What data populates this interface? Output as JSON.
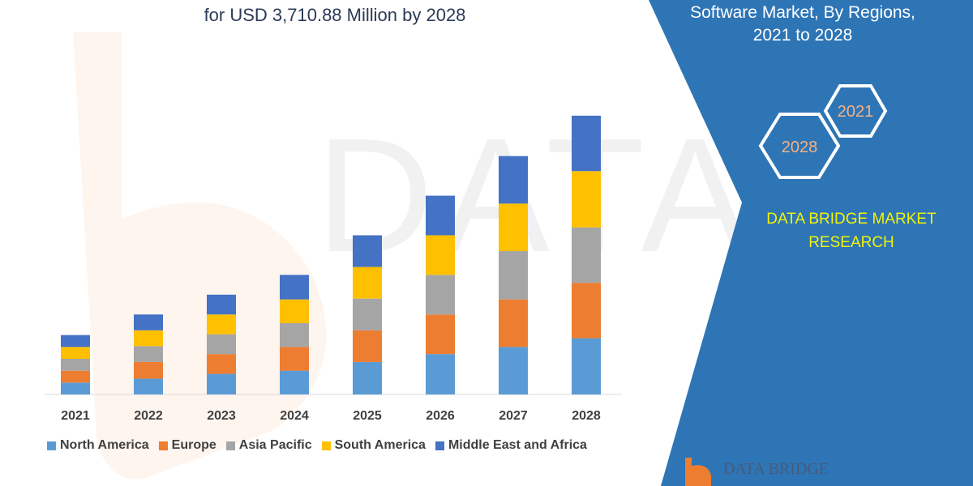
{
  "title_line2": "for USD 3,710.88 Million by 2028",
  "side_panel": {
    "line1": "Software Market, By Regions,",
    "line2": "2021 to 2028",
    "hex_a": "2021",
    "hex_b": "2028",
    "brand_line1": "DATA BRIDGE MARKET",
    "brand_line2": "RESEARCH",
    "logo_text": "DATA BRIDGE",
    "panel_color": "#2e75b6"
  },
  "chart_data": {
    "type": "bar",
    "stacked": true,
    "categories": [
      "2021",
      "2022",
      "2023",
      "2024",
      "2025",
      "2026",
      "2027",
      "2028"
    ],
    "series": [
      {
        "name": "North America",
        "color": "#5b9bd5",
        "values": [
          15,
          20,
          26,
          30,
          41,
          51,
          60,
          71
        ]
      },
      {
        "name": "Europe",
        "color": "#ed7d31",
        "values": [
          15,
          21,
          25,
          30,
          40,
          50,
          60,
          70
        ]
      },
      {
        "name": "Asia Pacific",
        "color": "#a5a5a5",
        "values": [
          15,
          20,
          25,
          30,
          40,
          50,
          61,
          70
        ]
      },
      {
        "name": "South America",
        "color": "#ffc000",
        "values": [
          15,
          20,
          25,
          30,
          40,
          50,
          60,
          71
        ]
      },
      {
        "name": "Middle East and Africa",
        "color": "#4472c4",
        "values": [
          15,
          20,
          25,
          31,
          40,
          50,
          60,
          70
        ]
      }
    ],
    "ylim": [
      0,
      360
    ],
    "grid": false,
    "legend_position": "bottom"
  }
}
